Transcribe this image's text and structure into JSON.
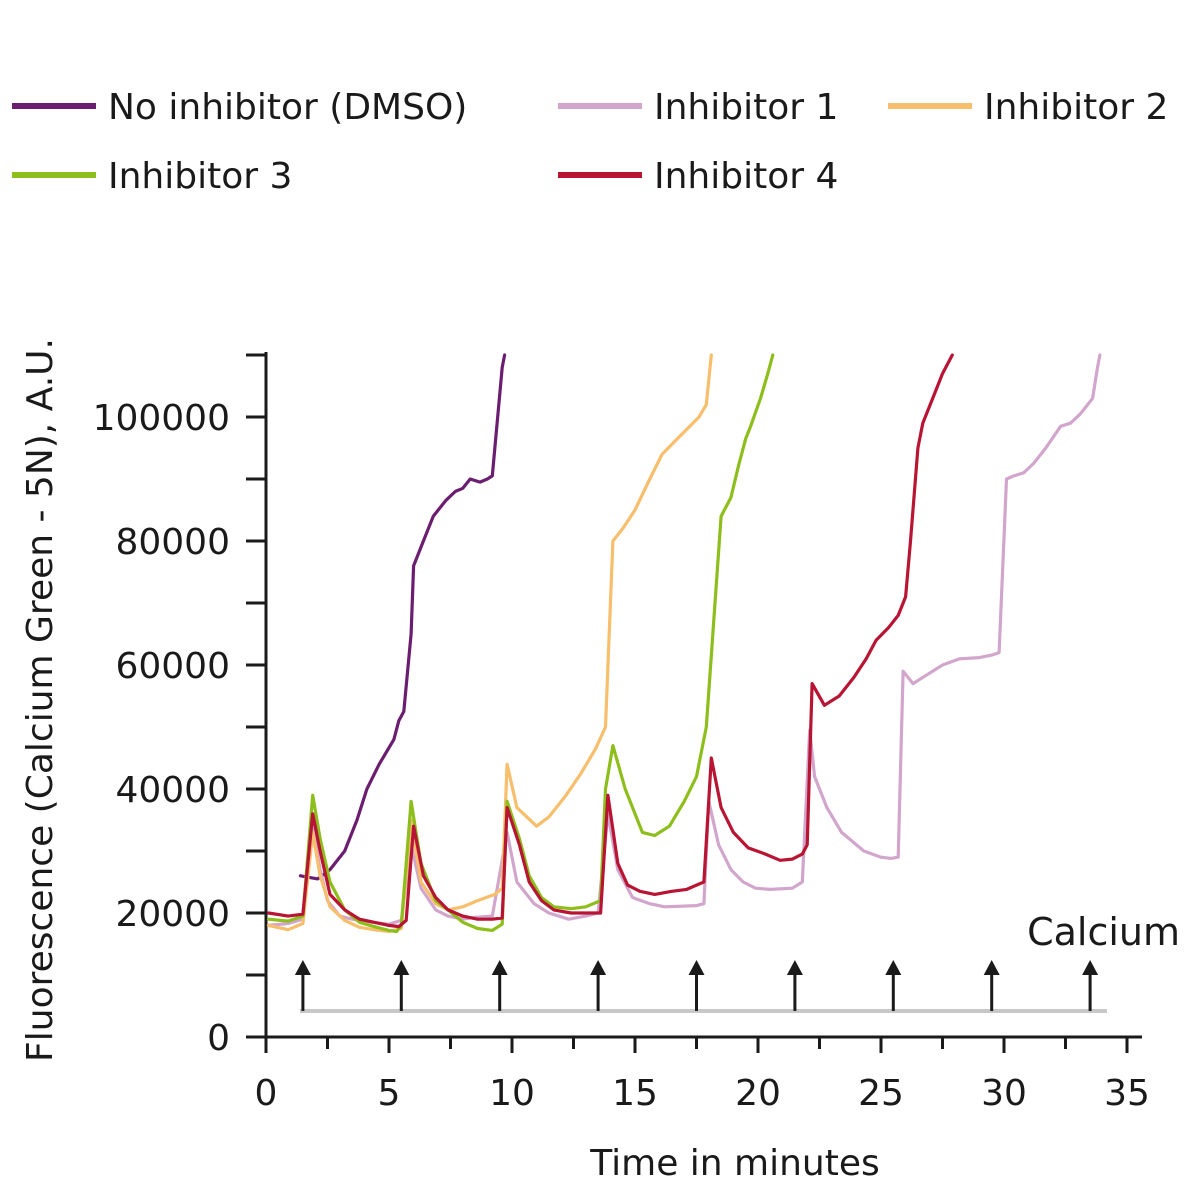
{
  "chart_data": {
    "type": "line",
    "xlabel": "Time in minutes",
    "ylabel": "Fluorescence (Calcium Green - 5N), A.U.",
    "xlim": [
      0,
      36
    ],
    "ylim": [
      0,
      110000
    ],
    "x_ticks": [
      0,
      5,
      10,
      15,
      20,
      25,
      30,
      35
    ],
    "y_ticks": [
      0,
      20000,
      40000,
      60000,
      80000,
      100000
    ],
    "grid": false,
    "legend_position": "top",
    "series": [
      {
        "name": "No inhibitor (DMSO)",
        "color": "#6b1e70",
        "points": [
          [
            1.4,
            26000
          ],
          [
            2.1,
            25500
          ],
          [
            2.6,
            27000
          ],
          [
            3.2,
            30000
          ],
          [
            3.7,
            35000
          ],
          [
            4.1,
            40000
          ],
          [
            4.6,
            44000
          ],
          [
            5.2,
            48000
          ],
          [
            5.4,
            51000
          ],
          [
            5.6,
            52500
          ],
          [
            5.9,
            65000
          ],
          [
            6.0,
            76000
          ],
          [
            6.4,
            80000
          ],
          [
            6.8,
            84000
          ],
          [
            7.3,
            86500
          ],
          [
            7.7,
            88000
          ],
          [
            8.0,
            88500
          ],
          [
            8.3,
            90000
          ],
          [
            8.7,
            89500
          ],
          [
            9.0,
            90000
          ],
          [
            9.2,
            90500
          ],
          [
            9.6,
            108000
          ],
          [
            9.7,
            110000
          ]
        ]
      },
      {
        "name": "Inhibitor 1",
        "color": "#d2a6cc",
        "points": [
          [
            0.1,
            18000
          ],
          [
            0.9,
            18300
          ],
          [
            1.5,
            19000
          ],
          [
            1.9,
            34000
          ],
          [
            2.2,
            27000
          ],
          [
            2.5,
            22000
          ],
          [
            3.0,
            19500
          ],
          [
            3.5,
            19000
          ],
          [
            4.3,
            18500
          ],
          [
            5.0,
            18200
          ],
          [
            5.5,
            18800
          ],
          [
            5.9,
            31000
          ],
          [
            6.3,
            24000
          ],
          [
            6.9,
            20500
          ],
          [
            7.4,
            19500
          ],
          [
            8.0,
            19000
          ],
          [
            8.5,
            19300
          ],
          [
            9.2,
            19500
          ],
          [
            9.8,
            33000
          ],
          [
            10.2,
            25000
          ],
          [
            10.9,
            21500
          ],
          [
            11.5,
            20000
          ],
          [
            12.3,
            19000
          ],
          [
            13.0,
            19500
          ],
          [
            13.5,
            20000
          ],
          [
            13.9,
            36000
          ],
          [
            14.3,
            27000
          ],
          [
            14.9,
            22500
          ],
          [
            15.6,
            21500
          ],
          [
            16.2,
            21000
          ],
          [
            17.5,
            21200
          ],
          [
            17.8,
            21500
          ],
          [
            18.0,
            38000
          ],
          [
            18.4,
            31000
          ],
          [
            18.9,
            27000
          ],
          [
            19.4,
            25000
          ],
          [
            19.9,
            24000
          ],
          [
            20.5,
            23800
          ],
          [
            21.4,
            24000
          ],
          [
            21.8,
            25000
          ],
          [
            22.1,
            49500
          ],
          [
            22.3,
            42000
          ],
          [
            22.8,
            37000
          ],
          [
            23.4,
            33000
          ],
          [
            24.3,
            30000
          ],
          [
            25.0,
            29000
          ],
          [
            25.4,
            28800
          ],
          [
            25.7,
            29000
          ],
          [
            25.9,
            59000
          ],
          [
            26.3,
            57000
          ],
          [
            26.9,
            58500
          ],
          [
            27.5,
            60000
          ],
          [
            28.2,
            61000
          ],
          [
            29.0,
            61200
          ],
          [
            29.5,
            61600
          ],
          [
            29.8,
            62000
          ],
          [
            30.1,
            90000
          ],
          [
            30.4,
            90500
          ],
          [
            30.8,
            91000
          ],
          [
            31.2,
            92500
          ],
          [
            31.7,
            95000
          ],
          [
            32.3,
            98500
          ],
          [
            32.7,
            99000
          ],
          [
            33.1,
            100500
          ],
          [
            33.6,
            103000
          ],
          [
            33.8,
            108000
          ],
          [
            33.9,
            110000
          ]
        ]
      },
      {
        "name": "Inhibitor 2",
        "color": "#f7be6c",
        "points": [
          [
            0.1,
            18000
          ],
          [
            0.9,
            17300
          ],
          [
            1.5,
            18300
          ],
          [
            1.9,
            33000
          ],
          [
            2.2,
            26000
          ],
          [
            2.6,
            21000
          ],
          [
            3.2,
            18800
          ],
          [
            3.8,
            17700
          ],
          [
            4.4,
            17300
          ],
          [
            5.0,
            17000
          ],
          [
            5.5,
            17500
          ],
          [
            5.9,
            35000
          ],
          [
            6.3,
            25000
          ],
          [
            6.9,
            21500
          ],
          [
            7.4,
            20500
          ],
          [
            8.0,
            21000
          ],
          [
            8.6,
            22000
          ],
          [
            9.3,
            23000
          ],
          [
            9.6,
            24000
          ],
          [
            9.8,
            44000
          ],
          [
            10.2,
            37000
          ],
          [
            10.6,
            35500
          ],
          [
            11.0,
            34000
          ],
          [
            11.5,
            35500
          ],
          [
            12.2,
            39000
          ],
          [
            12.8,
            42500
          ],
          [
            13.4,
            46500
          ],
          [
            13.8,
            50000
          ],
          [
            14.1,
            80000
          ],
          [
            14.5,
            82000
          ],
          [
            15.0,
            85000
          ],
          [
            15.6,
            90000
          ],
          [
            16.1,
            94000
          ],
          [
            16.6,
            96000
          ],
          [
            17.1,
            98000
          ],
          [
            17.6,
            100000
          ],
          [
            17.9,
            102000
          ],
          [
            18.1,
            110000
          ]
        ]
      },
      {
        "name": "Inhibitor 3",
        "color": "#8dbe1b",
        "points": [
          [
            0.1,
            19000
          ],
          [
            0.9,
            18700
          ],
          [
            1.5,
            19500
          ],
          [
            1.9,
            39000
          ],
          [
            2.2,
            32000
          ],
          [
            2.6,
            25000
          ],
          [
            3.2,
            20500
          ],
          [
            3.8,
            18500
          ],
          [
            4.4,
            17800
          ],
          [
            5.0,
            17200
          ],
          [
            5.3,
            17000
          ],
          [
            5.5,
            18000
          ],
          [
            5.9,
            38000
          ],
          [
            6.3,
            28000
          ],
          [
            6.9,
            22000
          ],
          [
            7.4,
            20500
          ],
          [
            8.0,
            18500
          ],
          [
            8.6,
            17500
          ],
          [
            9.2,
            17200
          ],
          [
            9.6,
            18200
          ],
          [
            9.8,
            38000
          ],
          [
            10.3,
            32000
          ],
          [
            10.7,
            26000
          ],
          [
            11.2,
            22500
          ],
          [
            11.7,
            21000
          ],
          [
            12.4,
            20700
          ],
          [
            13.0,
            21000
          ],
          [
            13.6,
            22000
          ],
          [
            13.8,
            40000
          ],
          [
            14.1,
            47000
          ],
          [
            14.6,
            40000
          ],
          [
            15.0,
            36000
          ],
          [
            15.3,
            33000
          ],
          [
            15.8,
            32500
          ],
          [
            16.4,
            34000
          ],
          [
            17.0,
            38000
          ],
          [
            17.5,
            42000
          ],
          [
            17.9,
            50000
          ],
          [
            18.2,
            67000
          ],
          [
            18.5,
            84000
          ],
          [
            18.9,
            87000
          ],
          [
            19.2,
            92000
          ],
          [
            19.5,
            96500
          ],
          [
            19.7,
            98500
          ],
          [
            20.1,
            103000
          ],
          [
            20.4,
            107000
          ],
          [
            20.6,
            110000
          ]
        ]
      },
      {
        "name": "Inhibitor 4",
        "color": "#b81433",
        "points": [
          [
            0.1,
            20000
          ],
          [
            0.9,
            19500
          ],
          [
            1.5,
            19800
          ],
          [
            1.9,
            36000
          ],
          [
            2.2,
            30000
          ],
          [
            2.6,
            23000
          ],
          [
            3.2,
            20500
          ],
          [
            3.8,
            19000
          ],
          [
            4.4,
            18500
          ],
          [
            5.0,
            18000
          ],
          [
            5.4,
            17800
          ],
          [
            5.7,
            18800
          ],
          [
            6.0,
            34000
          ],
          [
            6.4,
            26000
          ],
          [
            6.9,
            22500
          ],
          [
            7.4,
            20500
          ],
          [
            8.0,
            19500
          ],
          [
            8.6,
            19000
          ],
          [
            9.2,
            19000
          ],
          [
            9.6,
            19200
          ],
          [
            9.8,
            37000
          ],
          [
            10.3,
            31000
          ],
          [
            10.7,
            25000
          ],
          [
            11.2,
            22000
          ],
          [
            11.7,
            20500
          ],
          [
            12.4,
            20000
          ],
          [
            13.0,
            20000
          ],
          [
            13.6,
            20000
          ],
          [
            13.9,
            39000
          ],
          [
            14.3,
            28000
          ],
          [
            14.7,
            24500
          ],
          [
            15.2,
            23500
          ],
          [
            15.8,
            23000
          ],
          [
            16.5,
            23500
          ],
          [
            17.1,
            23800
          ],
          [
            17.5,
            24500
          ],
          [
            17.8,
            25000
          ],
          [
            18.1,
            45000
          ],
          [
            18.5,
            37000
          ],
          [
            19.0,
            33000
          ],
          [
            19.6,
            30500
          ],
          [
            20.3,
            29500
          ],
          [
            20.9,
            28500
          ],
          [
            21.4,
            28700
          ],
          [
            21.8,
            29500
          ],
          [
            22.0,
            31000
          ],
          [
            22.2,
            57000
          ],
          [
            22.7,
            53500
          ],
          [
            23.3,
            55000
          ],
          [
            23.9,
            58000
          ],
          [
            24.4,
            61000
          ],
          [
            24.8,
            64000
          ],
          [
            25.3,
            66000
          ],
          [
            25.7,
            68000
          ],
          [
            26.0,
            71000
          ],
          [
            26.2,
            80000
          ],
          [
            26.5,
            95000
          ],
          [
            26.7,
            99000
          ],
          [
            27.1,
            103000
          ],
          [
            27.5,
            107000
          ],
          [
            27.9,
            110000
          ]
        ]
      }
    ],
    "annotations": [
      {
        "text": "Calcium",
        "arrows_at_x": [
          1.5,
          5.5,
          9.5,
          13.5,
          17.5,
          21.5,
          25.5,
          29.5,
          33.5
        ]
      }
    ]
  }
}
